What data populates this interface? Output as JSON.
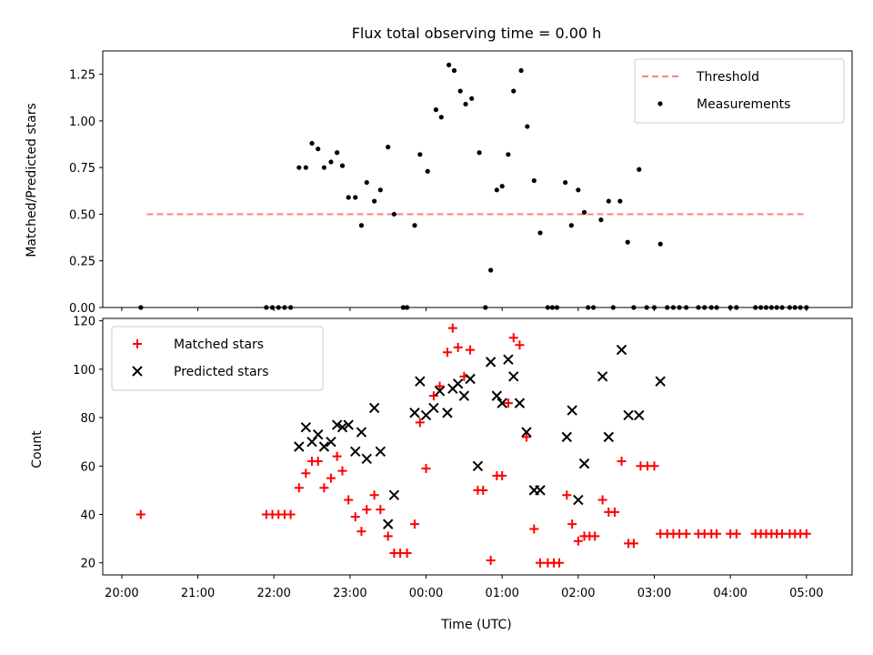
{
  "chart_data": [
    {
      "type": "scatter",
      "title": "Flux total observing time = 0.00 h",
      "xlabel": "",
      "ylabel": "Matched/Predicted stars",
      "ylim": [
        0,
        1.375
      ],
      "yticks": [
        "0.00",
        "0.25",
        "0.50",
        "0.75",
        "1.00",
        "1.25"
      ],
      "ytick_values": [
        0,
        0.25,
        0.5,
        0.75,
        1.0,
        1.25
      ],
      "xlim_hours": [
        19.75,
        29.6
      ],
      "legend_position": "top-right",
      "threshold": {
        "name": "Threshold",
        "value": 0.5,
        "x_range_hours": [
          20.33,
          29.0
        ],
        "color": "#ff7f7f"
      },
      "series": [
        {
          "name": "Measurements",
          "color": "#000000",
          "points": [
            [
              20.25,
              0.0
            ],
            [
              21.9,
              0.0
            ],
            [
              21.98,
              0.0
            ],
            [
              22.06,
              0.0
            ],
            [
              22.14,
              0.0
            ],
            [
              22.22,
              0.0
            ],
            [
              22.33,
              0.75
            ],
            [
              22.42,
              0.75
            ],
            [
              22.5,
              0.88
            ],
            [
              22.58,
              0.85
            ],
            [
              22.66,
              0.75
            ],
            [
              22.75,
              0.78
            ],
            [
              22.83,
              0.83
            ],
            [
              22.9,
              0.76
            ],
            [
              22.98,
              0.59
            ],
            [
              23.07,
              0.59
            ],
            [
              23.15,
              0.44
            ],
            [
              23.22,
              0.67
            ],
            [
              23.32,
              0.57
            ],
            [
              23.4,
              0.63
            ],
            [
              23.5,
              0.86
            ],
            [
              23.58,
              0.5
            ],
            [
              23.7,
              0.0
            ],
            [
              23.75,
              0.0
            ],
            [
              23.85,
              0.44
            ],
            [
              23.92,
              0.82
            ],
            [
              24.02,
              0.73
            ],
            [
              24.13,
              1.06
            ],
            [
              24.2,
              1.02
            ],
            [
              24.3,
              1.3
            ],
            [
              24.37,
              1.27
            ],
            [
              24.45,
              1.16
            ],
            [
              24.52,
              1.09
            ],
            [
              24.6,
              1.12
            ],
            [
              24.7,
              0.83
            ],
            [
              24.78,
              0.0
            ],
            [
              24.85,
              0.2
            ],
            [
              24.93,
              0.63
            ],
            [
              25.0,
              0.65
            ],
            [
              25.08,
              0.82
            ],
            [
              25.15,
              1.16
            ],
            [
              25.25,
              1.27
            ],
            [
              25.33,
              0.97
            ],
            [
              25.42,
              0.68
            ],
            [
              25.5,
              0.4
            ],
            [
              25.6,
              0.0
            ],
            [
              25.66,
              0.0
            ],
            [
              25.72,
              0.0
            ],
            [
              25.83,
              0.67
            ],
            [
              25.91,
              0.44
            ],
            [
              26.0,
              0.63
            ],
            [
              26.08,
              0.51
            ],
            [
              26.13,
              0.0
            ],
            [
              26.2,
              0.0
            ],
            [
              26.3,
              0.47
            ],
            [
              26.4,
              0.57
            ],
            [
              26.46,
              0.0
            ],
            [
              26.55,
              0.57
            ],
            [
              26.65,
              0.35
            ],
            [
              26.73,
              0.0
            ],
            [
              26.8,
              0.74
            ],
            [
              26.9,
              0.0
            ],
            [
              27.0,
              0.0
            ],
            [
              27.08,
              0.34
            ],
            [
              27.17,
              0.0
            ],
            [
              27.25,
              0.0
            ],
            [
              27.33,
              0.0
            ],
            [
              27.42,
              0.0
            ],
            [
              27.58,
              0.0
            ],
            [
              27.66,
              0.0
            ],
            [
              27.75,
              0.0
            ],
            [
              27.82,
              0.0
            ],
            [
              28.0,
              0.0
            ],
            [
              28.08,
              0.0
            ],
            [
              28.33,
              0.0
            ],
            [
              28.4,
              0.0
            ],
            [
              28.47,
              0.0
            ],
            [
              28.54,
              0.0
            ],
            [
              28.61,
              0.0
            ],
            [
              28.68,
              0.0
            ],
            [
              28.78,
              0.0
            ],
            [
              28.85,
              0.0
            ],
            [
              28.92,
              0.0
            ],
            [
              29.0,
              0.0
            ]
          ]
        }
      ]
    },
    {
      "type": "scatter",
      "title": "",
      "xlabel": "Time (UTC)",
      "ylabel": "Count",
      "ylim": [
        15,
        121
      ],
      "yticks": [
        "20",
        "40",
        "60",
        "80",
        "100",
        "120"
      ],
      "ytick_values": [
        20,
        40,
        60,
        80,
        100,
        120
      ],
      "xlim_hours": [
        19.75,
        29.6
      ],
      "xticks": [
        "20:00",
        "21:00",
        "22:00",
        "23:00",
        "00:00",
        "01:00",
        "02:00",
        "03:00",
        "04:00",
        "05:00"
      ],
      "xtick_values_hours": [
        20,
        21,
        22,
        23,
        24,
        25,
        26,
        27,
        28,
        29
      ],
      "legend_position": "top-left",
      "series": [
        {
          "name": "Matched stars",
          "color": "#ff0000",
          "marker": "plus",
          "points": [
            [
              20.25,
              40
            ],
            [
              21.9,
              40
            ],
            [
              21.98,
              40
            ],
            [
              22.06,
              40
            ],
            [
              22.14,
              40
            ],
            [
              22.22,
              40
            ],
            [
              22.33,
              51
            ],
            [
              22.42,
              57
            ],
            [
              22.5,
              62
            ],
            [
              22.58,
              62
            ],
            [
              22.66,
              51
            ],
            [
              22.75,
              55
            ],
            [
              22.83,
              64
            ],
            [
              22.9,
              58
            ],
            [
              22.98,
              46
            ],
            [
              23.07,
              39
            ],
            [
              23.15,
              33
            ],
            [
              23.22,
              42
            ],
            [
              23.32,
              48
            ],
            [
              23.4,
              42
            ],
            [
              23.5,
              31
            ],
            [
              23.58,
              24
            ],
            [
              23.66,
              24
            ],
            [
              23.75,
              24
            ],
            [
              23.85,
              36
            ],
            [
              23.92,
              78
            ],
            [
              24.0,
              59
            ],
            [
              24.1,
              89
            ],
            [
              24.18,
              93
            ],
            [
              24.28,
              107
            ],
            [
              24.35,
              117
            ],
            [
              24.42,
              109
            ],
            [
              24.5,
              97
            ],
            [
              24.58,
              108
            ],
            [
              24.68,
              50
            ],
            [
              24.75,
              50
            ],
            [
              24.85,
              21
            ],
            [
              24.93,
              56
            ],
            [
              25.0,
              56
            ],
            [
              25.08,
              86
            ],
            [
              25.15,
              113
            ],
            [
              25.23,
              110
            ],
            [
              25.32,
              72
            ],
            [
              25.42,
              34
            ],
            [
              25.5,
              20
            ],
            [
              25.6,
              20
            ],
            [
              25.68,
              20
            ],
            [
              25.75,
              20
            ],
            [
              25.85,
              48
            ],
            [
              25.92,
              36
            ],
            [
              26.0,
              29
            ],
            [
              26.08,
              31
            ],
            [
              26.15,
              31
            ],
            [
              26.22,
              31
            ],
            [
              26.32,
              46
            ],
            [
              26.4,
              41
            ],
            [
              26.48,
              41
            ],
            [
              26.57,
              62
            ],
            [
              26.66,
              28
            ],
            [
              26.73,
              28
            ],
            [
              26.82,
              60
            ],
            [
              26.91,
              60
            ],
            [
              27.0,
              60
            ],
            [
              27.08,
              32
            ],
            [
              27.17,
              32
            ],
            [
              27.25,
              32
            ],
            [
              27.33,
              32
            ],
            [
              27.42,
              32
            ],
            [
              27.58,
              32
            ],
            [
              27.66,
              32
            ],
            [
              27.75,
              32
            ],
            [
              27.82,
              32
            ],
            [
              28.0,
              32
            ],
            [
              28.08,
              32
            ],
            [
              28.33,
              32
            ],
            [
              28.4,
              32
            ],
            [
              28.47,
              32
            ],
            [
              28.54,
              32
            ],
            [
              28.61,
              32
            ],
            [
              28.68,
              32
            ],
            [
              28.78,
              32
            ],
            [
              28.85,
              32
            ],
            [
              28.92,
              32
            ],
            [
              29.0,
              32
            ]
          ]
        },
        {
          "name": "Predicted stars",
          "color": "#000000",
          "marker": "x",
          "points": [
            [
              22.33,
              68
            ],
            [
              22.42,
              76
            ],
            [
              22.5,
              70
            ],
            [
              22.58,
              73
            ],
            [
              22.66,
              68
            ],
            [
              22.75,
              70
            ],
            [
              22.83,
              77
            ],
            [
              22.9,
              76
            ],
            [
              22.98,
              77
            ],
            [
              23.07,
              66
            ],
            [
              23.15,
              74
            ],
            [
              23.22,
              63
            ],
            [
              23.32,
              84
            ],
            [
              23.4,
              66
            ],
            [
              23.5,
              36
            ],
            [
              23.58,
              48
            ],
            [
              23.85,
              82
            ],
            [
              23.92,
              95
            ],
            [
              24.0,
              81
            ],
            [
              24.1,
              84
            ],
            [
              24.18,
              91
            ],
            [
              24.28,
              82
            ],
            [
              24.35,
              92
            ],
            [
              24.42,
              94
            ],
            [
              24.5,
              89
            ],
            [
              24.58,
              96
            ],
            [
              24.68,
              60
            ],
            [
              24.85,
              103
            ],
            [
              24.93,
              89
            ],
            [
              25.0,
              86
            ],
            [
              25.08,
              104
            ],
            [
              25.15,
              97
            ],
            [
              25.23,
              86
            ],
            [
              25.32,
              74
            ],
            [
              25.42,
              50
            ],
            [
              25.5,
              50
            ],
            [
              25.85,
              72
            ],
            [
              25.92,
              83
            ],
            [
              26.0,
              46
            ],
            [
              26.08,
              61
            ],
            [
              26.32,
              97
            ],
            [
              26.4,
              72
            ],
            [
              26.57,
              108
            ],
            [
              26.66,
              81
            ],
            [
              26.8,
              81
            ],
            [
              27.08,
              95
            ]
          ]
        }
      ]
    }
  ]
}
